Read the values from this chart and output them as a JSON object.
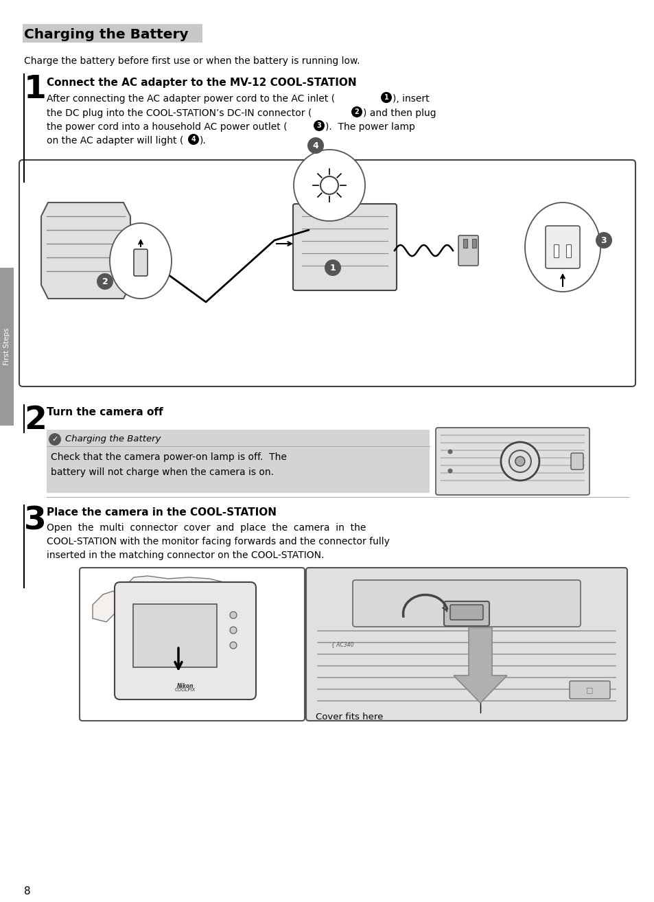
{
  "title": "Charging the Battery",
  "subtitle": "Charge the battery before first use or when the battery is running low.",
  "step1_num": "1",
  "step1_heading": "Connect the AC adapter to the MV-12 COOL-STATION",
  "step1_body_line1": "After connecting the AC adapter power cord to the AC inlet (",
  "step1_body_line1b": "), insert",
  "step1_body_line2": "the DC plug into the COOL-STATION’s DC-IN connector (",
  "step1_body_line2b": ") and then plug",
  "step1_body_line3": "the power cord into a household AC power outlet (",
  "step1_body_line3b": ").  The power lamp",
  "step1_body_line4": "on the AC adapter will light (",
  "step1_body_line4b": ").",
  "step2_num": "2",
  "step2_heading": "Turn the camera off",
  "note_title": "Charging the Battery",
  "note_body1": "Check that the camera power-on lamp is off.  The",
  "note_body2": "battery will not charge when the camera is on.",
  "step3_num": "3",
  "step3_heading": "Place the camera in the COOL-STATION",
  "step3_body1": "Open  the  multi  connector  cover  and  place  the  camera  in  the",
  "step3_body2": "COOL-STATION with the monitor facing forwards and the connector fully",
  "step3_body3": "inserted in the matching connector on the COOL-STATION.",
  "cover_label": "Cover fits here",
  "page_num": "8",
  "sidebar_text": "First Steps",
  "bg": "#ffffff",
  "fg": "#000000",
  "title_highlight": "#c8c8c8",
  "note_bg": "#d4d4d4",
  "sidebar_bg": "#999999",
  "diagram_border": "#444444",
  "light_gray": "#e0e0e0",
  "mid_gray": "#aaaaaa",
  "arrow_gray": "#b0b0b0"
}
